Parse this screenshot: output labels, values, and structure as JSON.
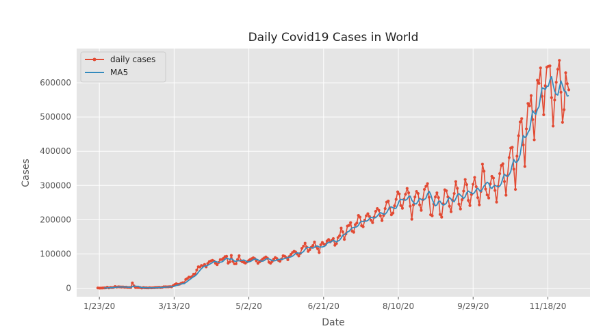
{
  "chart_data": {
    "type": "line",
    "title": "Daily Covid19 Cases in World",
    "xlabel": "Date",
    "ylabel": "Cases",
    "x_start": "1/22/20",
    "x_end": "12/2/20",
    "xticks": [
      "1/23/20",
      "3/13/20",
      "5/2/20",
      "6/21/20",
      "8/10/20",
      "9/29/20",
      "11/18/20"
    ],
    "ylim": [
      -25000,
      700000
    ],
    "yticks": [
      0,
      100000,
      200000,
      300000,
      400000,
      500000,
      600000
    ],
    "ytick_labels": [
      "0",
      "100000",
      "200000",
      "300000",
      "400000",
      "500000",
      "600000"
    ],
    "grid": true,
    "legend_position": "upper-left",
    "colors": {
      "daily": "#E24A33",
      "ma": "#348ABD",
      "background": "#E5E5E5",
      "grid": "#FFFFFF"
    },
    "series": [
      {
        "name": "daily cases",
        "style": "line-with-markers",
        "values": [
          555,
          98,
          288,
          493,
          684,
          809,
          2651,
          588,
          2068,
          1693,
          2111,
          4749,
          3094,
          4011,
          3743,
          3160,
          3597,
          2657,
          2983,
          2113,
          2041,
          2035,
          15152,
          6526,
          2021,
          1888,
          2001,
          1751,
          393,
          1750,
          952,
          1014,
          599,
          1348,
          849,
          1093,
          1444,
          1972,
          2001,
          2474,
          1884,
          2394,
          3964,
          3985,
          3811,
          3907,
          4515,
          4006,
          7405,
          10593,
          12883,
          10776,
          11602,
          13920,
          15719,
          15838,
          25364,
          27937,
          32213,
          31787,
          33863,
          40698,
          41286,
          53054,
          62462,
          61773,
          66232,
          64522,
          69286,
          62117,
          72154,
          77640,
          79474,
          81280,
          79004,
          72456,
          68712,
          75271,
          83467,
          83741,
          87122,
          92018,
          93087,
          73124,
          76512,
          95618,
          78346,
          71254,
          71234,
          83742,
          94612,
          80512,
          77154,
          75621,
          73214,
          76645,
          80123,
          83564,
          86024,
          88731,
          86215,
          79524,
          72614,
          76781,
          80421,
          85246,
          88120,
          91246,
          87654,
          75821,
          72914,
          77845,
          84621,
          89412,
          86452,
          81245,
          78652,
          85123,
          94524,
          93412,
          89452,
          82945,
          92451,
          98645,
          104215,
          107542,
          105845,
          99845,
          94125,
          101452,
          116245,
          122541,
          131452,
          119845,
          107452,
          112845,
          119452,
          124561,
          134852,
          121456,
          115245,
          104125,
          126845,
          133452,
          128416,
          127452,
          137845,
          142156,
          135145,
          139452,
          144785,
          125423,
          130542,
          147852,
          153145,
          175452,
          164512,
          142452,
          158452,
          181452,
          183452,
          191542,
          166452,
          163452,
          185452,
          190452,
          212452,
          207452,
          182452,
          179452,
          198452,
          211452,
          217452,
          209452,
          198452,
          191452,
          207452,
          224452,
          232452,
          227452,
          211452,
          197452,
          212452,
          232452,
          251452,
          254452,
          234452,
          214452,
          219452,
          240452,
          259452,
          281452,
          275452,
          241452,
          233452,
          259452,
          274452,
          291452,
          278452,
          239452,
          201452,
          243452,
          266452,
          282452,
          276452,
          243452,
          227452,
          258452,
          288452,
          297452,
          305452,
          265452,
          214452,
          211452,
          245452,
          266452,
          278452,
          264452,
          215452,
          207452,
          246452,
          287452,
          284452,
          266452,
          239452,
          223452,
          256452,
          276452,
          311452,
          291452,
          245452,
          231452,
          258452,
          283452,
          317452,
          302452,
          256452,
          241452,
          273452,
          303452,
          323452,
          296452,
          264452,
          243452,
          282452,
          362452,
          341452,
          289452,
          272452,
          263452,
          304452,
          326452,
          321452,
          285452,
          251452,
          297452,
          334452,
          358452,
          363452,
          311452,
          271452,
          328452,
          381452,
          409452,
          411452,
          347452,
          288452,
          385452,
          445452,
          485452,
          495452,
          418452,
          355452,
          465452,
          539452,
          532452,
          562452,
          492452,
          433452,
          517452,
          607452,
          598452,
          643452,
          560452,
          506452,
          591452,
          645452,
          648452,
          649452,
          556452,
          473452,
          549452,
          601452,
          639452,
          665452,
          572452,
          484452,
          521452,
          629452,
          597452,
          579452
        ]
      },
      {
        "name": "MA5",
        "style": "line"
      }
    ]
  }
}
